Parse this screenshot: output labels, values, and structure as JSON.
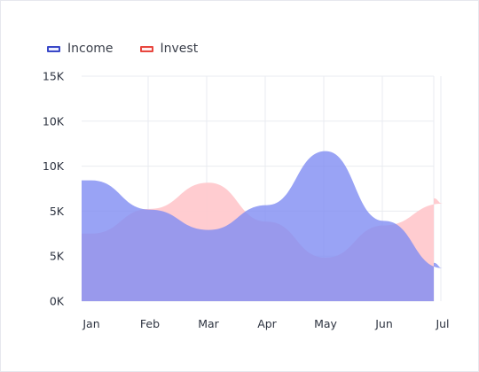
{
  "colors": {
    "income_stroke": "#3a48c8",
    "income_fill": "#7f8cf2",
    "invest_stroke": "#e8473f",
    "invest_fill": "#ffc9cd",
    "grid": "#e9ebf0",
    "text": "#2d3340"
  },
  "chart_data": {
    "type": "area",
    "title": "",
    "xlabel": "",
    "ylabel": "",
    "categories": [
      "Jan",
      "Feb",
      "Mar",
      "Apr",
      "May",
      "Jun",
      "Jul"
    ],
    "y_tick_labels": [
      "0K",
      "5K",
      "5K",
      "10K",
      "10K",
      "15K"
    ],
    "ylim": [
      0,
      15000
    ],
    "grid": true,
    "legend_position": "top-left",
    "series": [
      {
        "name": "Income",
        "values": [
          8050,
          6100,
          4750,
          6400,
          10000,
          5350,
          2200
        ]
      },
      {
        "name": "Invest",
        "values": [
          4500,
          6150,
          7900,
          5300,
          2900,
          5050,
          6500
        ]
      }
    ]
  }
}
